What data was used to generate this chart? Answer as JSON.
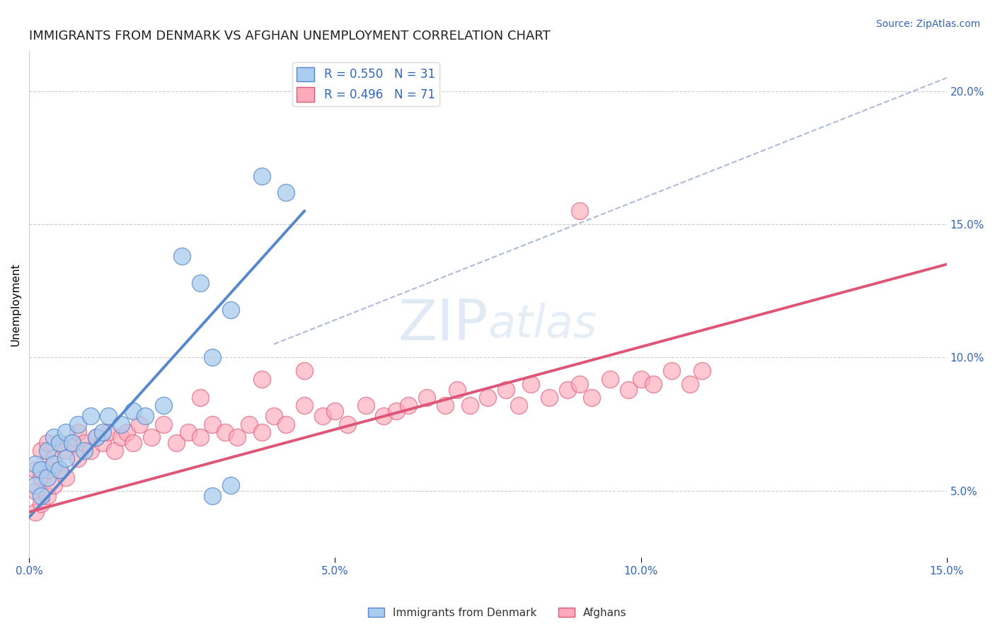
{
  "title": "IMMIGRANTS FROM DENMARK VS AFGHAN UNEMPLOYMENT CORRELATION CHART",
  "source_text": "Source: ZipAtlas.com",
  "ylabel": "Unemployment",
  "xlim": [
    0.0,
    0.15
  ],
  "ylim": [
    0.025,
    0.215
  ],
  "yticks": [
    0.05,
    0.1,
    0.15,
    0.2
  ],
  "xticks": [
    0.0,
    0.05,
    0.1,
    0.15
  ],
  "blue_line_x": [
    0.0,
    0.045
  ],
  "blue_line_y": [
    0.04,
    0.155
  ],
  "pink_line_x": [
    0.0,
    0.15
  ],
  "pink_line_y": [
    0.042,
    0.135
  ],
  "ref_line_x": [
    0.04,
    0.15
  ],
  "ref_line_y": [
    0.105,
    0.205
  ],
  "blue_color": "#5588cc",
  "pink_color": "#dd5577",
  "blue_fill": "#aaccee",
  "pink_fill": "#ffaabb",
  "grid_color": "#cccccc",
  "title_fontsize": 13,
  "axis_label_fontsize": 11,
  "tick_fontsize": 11,
  "source_fontsize": 10,
  "blue_x": [
    0.001,
    0.001,
    0.002,
    0.002,
    0.003,
    0.003,
    0.004,
    0.004,
    0.005,
    0.005,
    0.006,
    0.006,
    0.007,
    0.008,
    0.009,
    0.01,
    0.011,
    0.012,
    0.013,
    0.015,
    0.017,
    0.019,
    0.022,
    0.025,
    0.028,
    0.03,
    0.033,
    0.038,
    0.042,
    0.03,
    0.033
  ],
  "blue_y": [
    0.06,
    0.052,
    0.058,
    0.048,
    0.065,
    0.055,
    0.07,
    0.06,
    0.068,
    0.058,
    0.072,
    0.062,
    0.068,
    0.075,
    0.065,
    0.078,
    0.07,
    0.072,
    0.078,
    0.075,
    0.08,
    0.078,
    0.082,
    0.138,
    0.128,
    0.1,
    0.118,
    0.168,
    0.162,
    0.048,
    0.052
  ],
  "pink_x": [
    0.001,
    0.001,
    0.001,
    0.002,
    0.002,
    0.002,
    0.003,
    0.003,
    0.003,
    0.004,
    0.004,
    0.005,
    0.005,
    0.006,
    0.006,
    0.007,
    0.008,
    0.008,
    0.009,
    0.01,
    0.011,
    0.012,
    0.013,
    0.014,
    0.015,
    0.016,
    0.017,
    0.018,
    0.02,
    0.022,
    0.024,
    0.026,
    0.028,
    0.03,
    0.032,
    0.034,
    0.036,
    0.038,
    0.04,
    0.042,
    0.045,
    0.048,
    0.05,
    0.052,
    0.055,
    0.058,
    0.06,
    0.062,
    0.065,
    0.068,
    0.07,
    0.072,
    0.075,
    0.078,
    0.08,
    0.082,
    0.085,
    0.088,
    0.09,
    0.092,
    0.095,
    0.098,
    0.1,
    0.102,
    0.105,
    0.108,
    0.11,
    0.028,
    0.038,
    0.045,
    0.09
  ],
  "pink_y": [
    0.058,
    0.05,
    0.042,
    0.065,
    0.055,
    0.045,
    0.068,
    0.058,
    0.048,
    0.062,
    0.052,
    0.068,
    0.058,
    0.065,
    0.055,
    0.068,
    0.072,
    0.062,
    0.068,
    0.065,
    0.07,
    0.068,
    0.072,
    0.065,
    0.07,
    0.072,
    0.068,
    0.075,
    0.07,
    0.075,
    0.068,
    0.072,
    0.07,
    0.075,
    0.072,
    0.07,
    0.075,
    0.072,
    0.078,
    0.075,
    0.082,
    0.078,
    0.08,
    0.075,
    0.082,
    0.078,
    0.08,
    0.082,
    0.085,
    0.082,
    0.088,
    0.082,
    0.085,
    0.088,
    0.082,
    0.09,
    0.085,
    0.088,
    0.09,
    0.085,
    0.092,
    0.088,
    0.092,
    0.09,
    0.095,
    0.09,
    0.095,
    0.085,
    0.092,
    0.095,
    0.155
  ]
}
